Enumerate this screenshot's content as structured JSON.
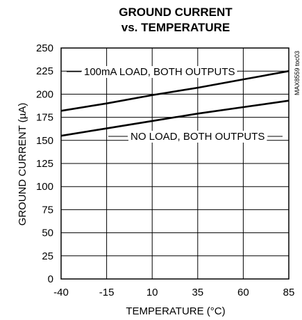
{
  "chart_data": {
    "type": "line",
    "title": [
      "GROUND CURRENT",
      "vs. TEMPERATURE"
    ],
    "xlabel": "TEMPERATURE (°C)",
    "ylabel": "GROUND CURRENT (µA)",
    "xlim": [
      -40,
      85
    ],
    "ylim": [
      0,
      250
    ],
    "xticks": [
      -40,
      -15,
      10,
      35,
      60,
      85
    ],
    "yticks": [
      0,
      25,
      50,
      75,
      100,
      125,
      150,
      175,
      200,
      225,
      250
    ],
    "grid": true,
    "series": [
      {
        "name": "100mA LOAD, BOTH OUTPUTS",
        "x": [
          -40,
          -15,
          10,
          35,
          60,
          85
        ],
        "y": [
          182,
          190,
          199,
          207,
          216,
          225
        ]
      },
      {
        "name": "NO LOAD, BOTH OUTPUTS",
        "x": [
          -40,
          -15,
          10,
          35,
          60,
          85
        ],
        "y": [
          155,
          163,
          171,
          179,
          186,
          193
        ]
      }
    ],
    "figure_code": "MAX8559 toc03"
  }
}
